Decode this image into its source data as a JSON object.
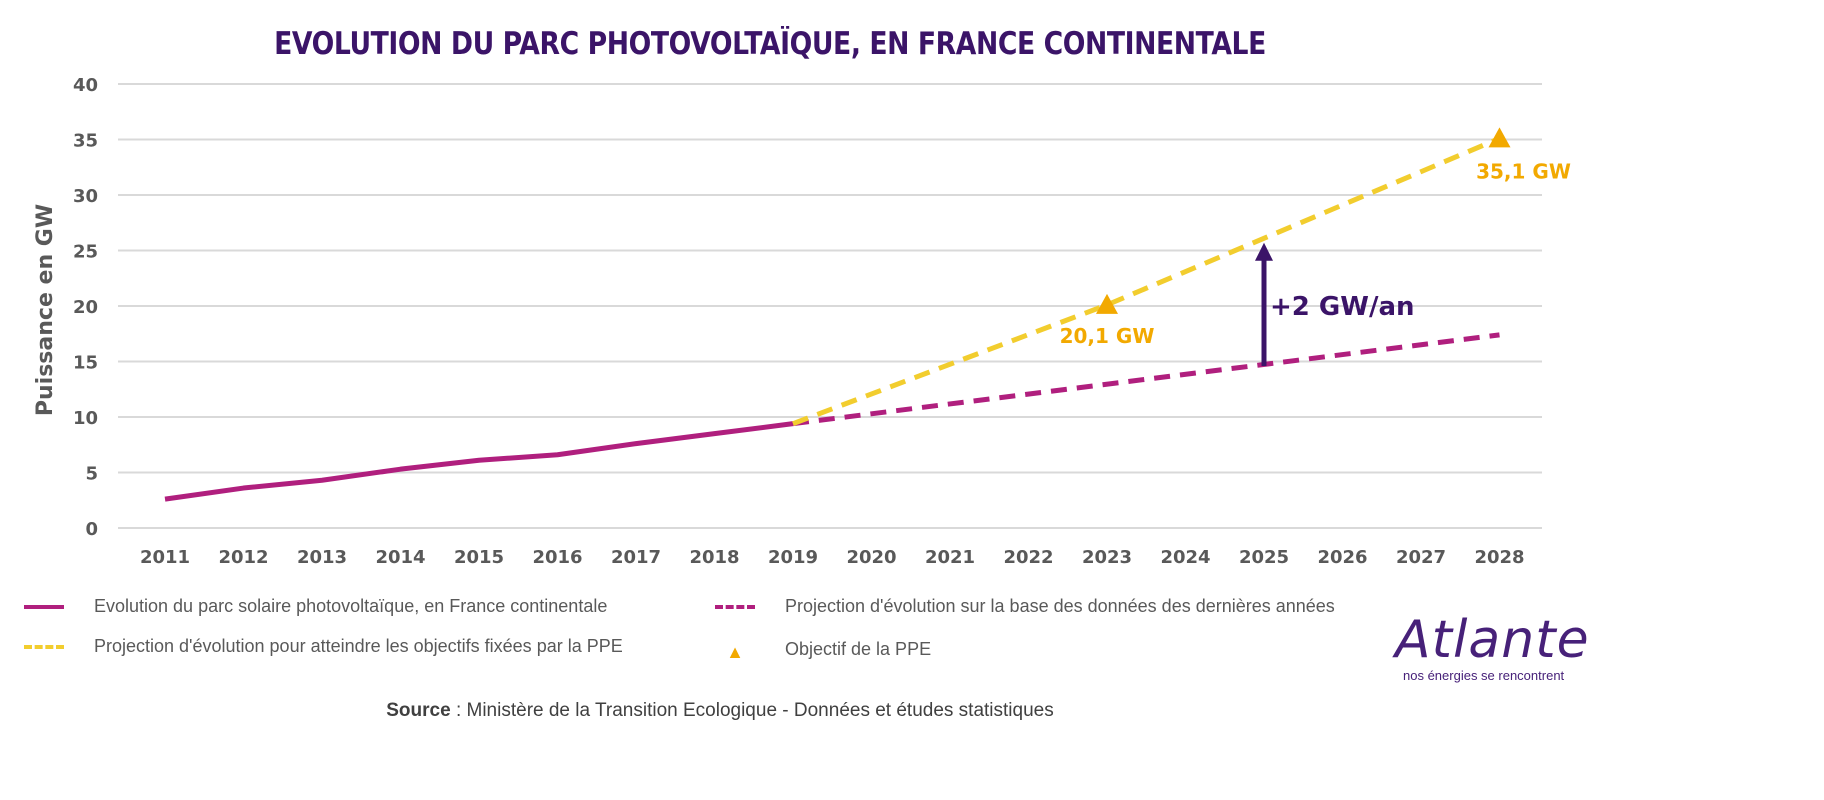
{
  "chart_data": {
    "type": "line",
    "title": "EVOLUTION DU PARC PHOTOVOLTAÏQUE, EN FRANCE CONTINENTALE",
    "ylabel": "Puissance en GW",
    "xlabel": "",
    "ylim": [
      0,
      40
    ],
    "yticks": [
      "0",
      "5",
      "10",
      "15",
      "20",
      "25",
      "30",
      "35",
      "40"
    ],
    "categories": [
      "2011",
      "2012",
      "2013",
      "2014",
      "2015",
      "2016",
      "2017",
      "2018",
      "2019",
      "2020",
      "2021",
      "2022",
      "2023",
      "2024",
      "2025",
      "2026",
      "2027",
      "2028"
    ],
    "grid": true,
    "legend_placement": "bottom",
    "series": [
      {
        "name": "Evolution du parc solaire photovoltaïque, en France continentale",
        "style": "solid",
        "color": "#b01f7e",
        "points": [
          [
            2011,
            2.6
          ],
          [
            2012,
            3.6
          ],
          [
            2013,
            4.3
          ],
          [
            2014,
            5.3
          ],
          [
            2015,
            6.1
          ],
          [
            2016,
            6.6
          ],
          [
            2017,
            7.6
          ],
          [
            2018,
            8.5
          ],
          [
            2019,
            9.4
          ]
        ]
      },
      {
        "name": "Projection d'évolution sur la base des données des dernières années",
        "style": "dashed",
        "color": "#b01f7e",
        "points": [
          [
            2019,
            9.4
          ],
          [
            2028,
            17.4
          ]
        ]
      },
      {
        "name": "Projection d'évolution pour atteindre les objectifs fixées par la PPE",
        "style": "dashed",
        "color": "#f2cd2e",
        "points": [
          [
            2019,
            9.4
          ],
          [
            2023,
            20.1
          ],
          [
            2028,
            35.1
          ]
        ]
      },
      {
        "name": "Objectif de la PPE",
        "style": "marker-triangle",
        "color": "#f2a900",
        "points": [
          [
            2023,
            20.1
          ],
          [
            2028,
            35.1
          ]
        ],
        "labels": [
          "20,1 GW",
          "35,1 GW"
        ]
      }
    ],
    "annotations": [
      {
        "text": "+2 GW/an",
        "type": "arrow",
        "x": 2025,
        "from": 14.6,
        "to": 25.7,
        "color": "#3b1468"
      }
    ]
  },
  "source": {
    "label": "Source",
    "text": " : Ministère de la Transition Ecologique - Données et études statistiques"
  },
  "logo": {
    "name": "Atlante",
    "tagline": "nos énergies se rencontrent"
  }
}
